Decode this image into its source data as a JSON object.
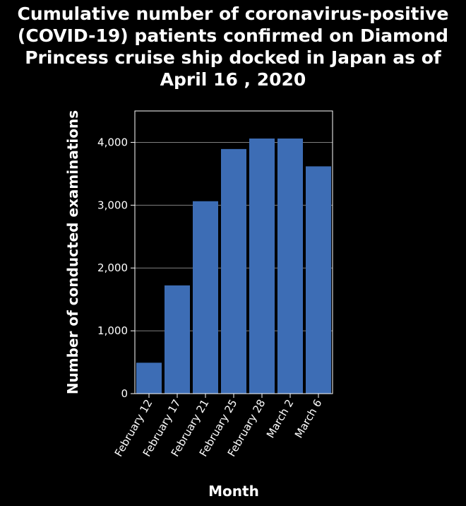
{
  "chart_data": {
    "type": "bar",
    "title": "Cumulative number of coronavirus-positive (COVID-19) patients confirmed on Diamond Princess cruise ship docked in Japan as of April 16 , 2020",
    "title_lines": [
      "Cumulative number of coronavirus-positive",
      "(COVID-19) patients confirmed on Diamond",
      "Princess cruise ship docked in Japan as of",
      "April 16 , 2020"
    ],
    "xlabel": "Month",
    "ylabel": "Number of conducted examinations",
    "categories": [
      "February 12",
      "February 17",
      "February 21",
      "February 25",
      "February 28",
      "March 2",
      "March 6"
    ],
    "values": [
      492,
      1723,
      3063,
      3894,
      4061,
      4061,
      3618
    ],
    "ylim": [
      0,
      4500
    ],
    "yticks": [
      0,
      1000,
      2000,
      3000,
      4000
    ],
    "ytick_labels": [
      "0",
      "1,000",
      "2,000",
      "3,000",
      "4,000"
    ],
    "grid": true,
    "bar_color": "#3d6db5",
    "background_color": "#000000",
    "text_color": "#ffffff",
    "grid_color": "#808080"
  }
}
